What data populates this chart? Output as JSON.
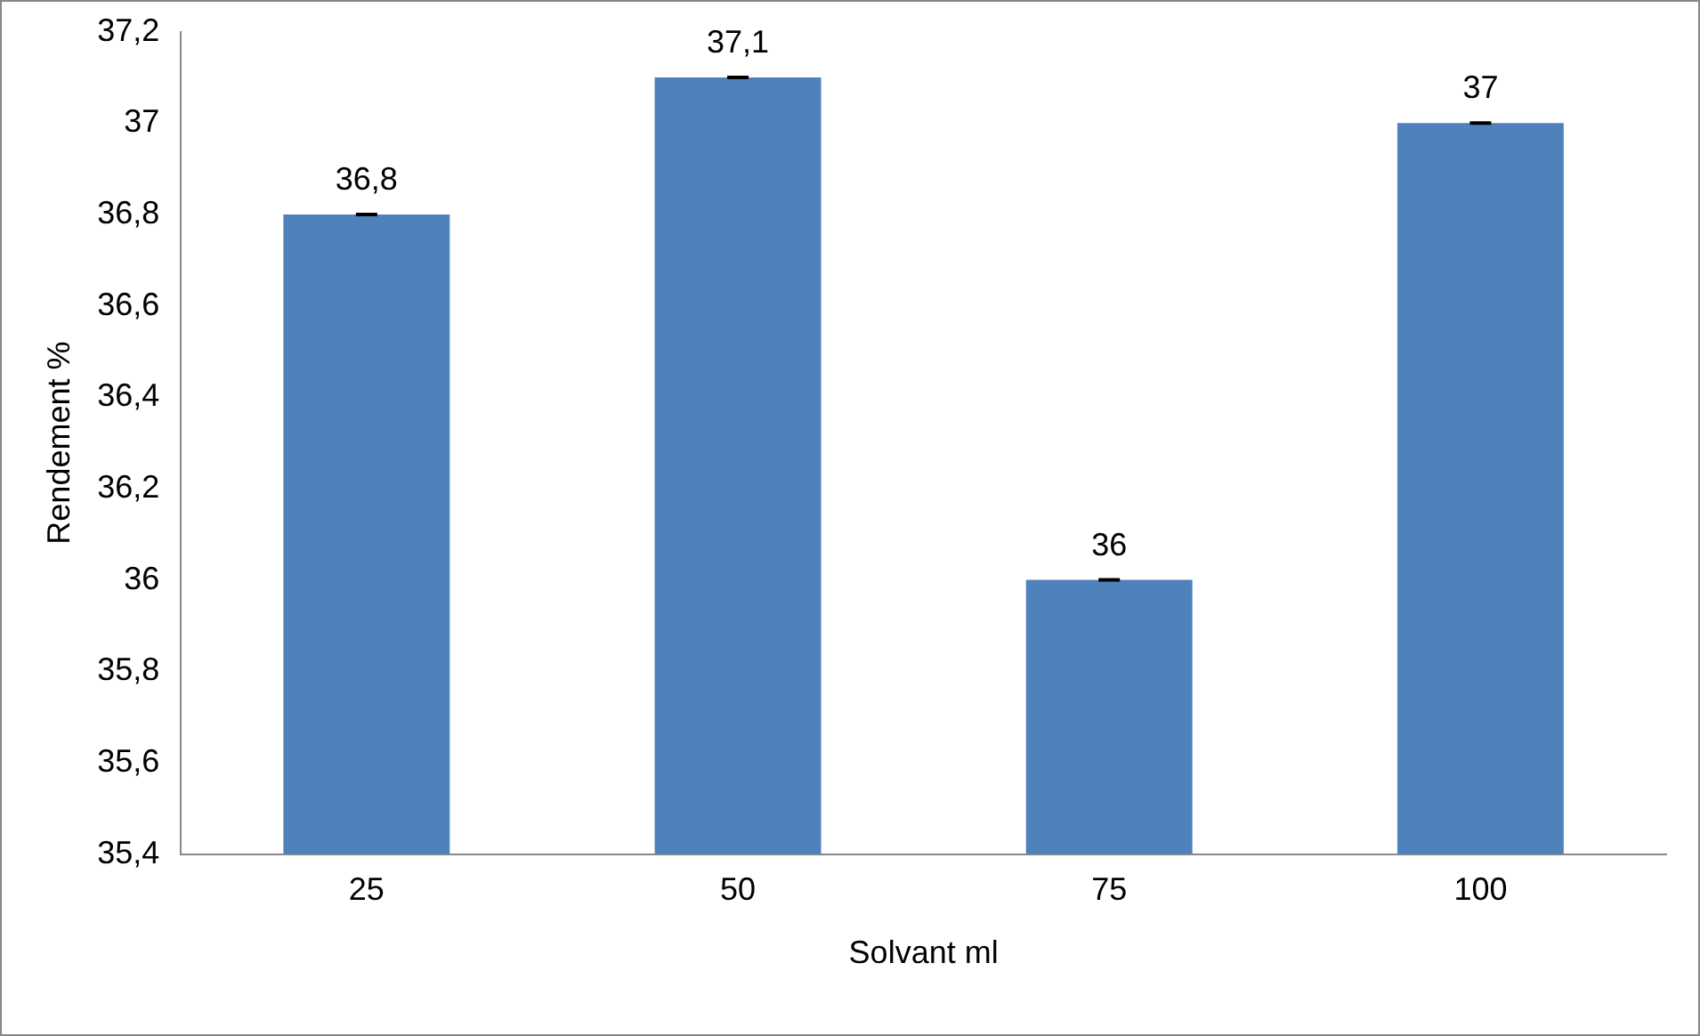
{
  "chart_data": {
    "type": "bar",
    "xlabel": "Solvant ml",
    "ylabel": "Rendement %",
    "categories": [
      "25",
      "50",
      "75",
      "100"
    ],
    "values": [
      36.8,
      37.1,
      36,
      37
    ],
    "value_labels": [
      "36,8",
      "37,1",
      "36",
      "37"
    ],
    "errors": [
      0,
      0,
      0,
      0
    ],
    "color": "#4f81bd",
    "ylim": [
      35.4,
      37.2
    ],
    "yticks": [
      {
        "value": 35.4,
        "label": "35,4"
      },
      {
        "value": 35.6,
        "label": "35,6"
      },
      {
        "value": 35.8,
        "label": "35,8"
      },
      {
        "value": 36,
        "label": "36"
      },
      {
        "value": 36.2,
        "label": "36,2"
      },
      {
        "value": 36.4,
        "label": "36,4"
      },
      {
        "value": 36.6,
        "label": "36,6"
      },
      {
        "value": 36.8,
        "label": "36,8"
      },
      {
        "value": 37,
        "label": "37"
      },
      {
        "value": 37.2,
        "label": "37,2"
      }
    ],
    "grid": false,
    "legend": false
  }
}
